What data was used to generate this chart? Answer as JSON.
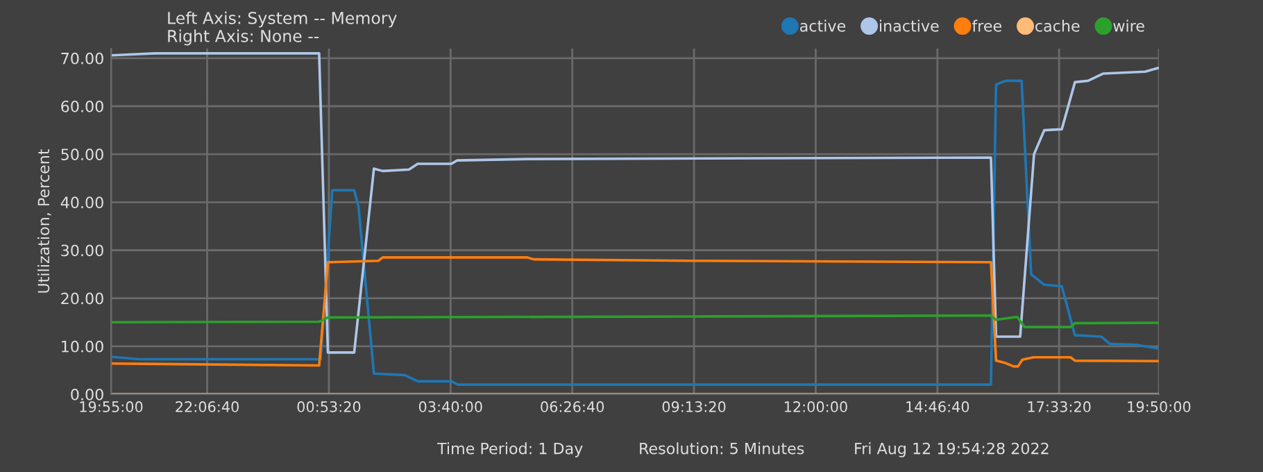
{
  "chart_data": {
    "type": "line",
    "title": "Left Axis: System -- Memory",
    "subtitle": "Right Axis: None --",
    "ylabel": "Utilization, Percent",
    "annotations": [
      "Time Period: 1 Day",
      "Resolution: 5 Minutes",
      "Fri Aug 12 19:54:28 2022"
    ],
    "xlim": [
      "2022-08-11T19:55",
      "2022-08-12T19:50"
    ],
    "xticks": [
      {
        "value": "2022-08-11T19:55",
        "label": "19:55:00"
      },
      {
        "value": "2022-08-11T22:06:40",
        "label": "22:06:40"
      },
      {
        "value": "2022-08-12T00:53:20",
        "label": "00:53:20"
      },
      {
        "value": "2022-08-12T03:40",
        "label": "03:40:00"
      },
      {
        "value": "2022-08-12T06:26:40",
        "label": "06:26:40"
      },
      {
        "value": "2022-08-12T09:13:20",
        "label": "09:13:20"
      },
      {
        "value": "2022-08-12T12:00",
        "label": "12:00:00"
      },
      {
        "value": "2022-08-12T14:46:40",
        "label": "14:46:40"
      },
      {
        "value": "2022-08-12T17:33:20",
        "label": "17:33:20"
      },
      {
        "value": "2022-08-12T19:50",
        "label": "19:50:00"
      }
    ],
    "ylim": [
      0,
      72
    ],
    "yticks": [
      {
        "value": 0,
        "label": "0.00"
      },
      {
        "value": 10,
        "label": "10.00"
      },
      {
        "value": 20,
        "label": "20.00"
      },
      {
        "value": 30,
        "label": "30.00"
      },
      {
        "value": 40,
        "label": "40.00"
      },
      {
        "value": 50,
        "label": "50.00"
      },
      {
        "value": 60,
        "label": "60.00"
      },
      {
        "value": 70,
        "label": "70.00"
      }
    ],
    "grid": true,
    "legend": "top right",
    "series": [
      {
        "name": "active",
        "color": "#1f77b4",
        "x": [
          "2022-08-11T19:55",
          "2022-08-11T20:33",
          "2022-08-12T00:42",
          "2022-08-12T00:58",
          "2022-08-12T01:28",
          "2022-08-12T01:34",
          "2022-08-12T01:55",
          "2022-08-12T02:37",
          "2022-08-12T02:55",
          "2022-08-12T03:41",
          "2022-08-12T03:50",
          "2022-08-12T16:00",
          "2022-08-12T16:07",
          "2022-08-12T16:20",
          "2022-08-12T16:42",
          "2022-08-12T16:55",
          "2022-08-12T17:13",
          "2022-08-12T17:37",
          "2022-08-12T17:55",
          "2022-08-12T18:31",
          "2022-08-12T18:43",
          "2022-08-12T19:19",
          "2022-08-12T19:50"
        ],
        "values": [
          7.8,
          7.3,
          7.3,
          42.5,
          42.5,
          39,
          4.3,
          4,
          2.7,
          2.7,
          2,
          2,
          64.5,
          65.3,
          65.3,
          25,
          22.8,
          22.5,
          12.3,
          12,
          10.5,
          10.3,
          9.5
        ]
      },
      {
        "name": "inactive",
        "color": "#aec7e8",
        "x": [
          "2022-08-11T19:55",
          "2022-08-11T20:55",
          "2022-08-12T00:40",
          "2022-08-12T00:52",
          "2022-08-12T01:28",
          "2022-08-12T01:55",
          "2022-08-12T02:07",
          "2022-08-12T02:43",
          "2022-08-12T02:55",
          "2022-08-12T03:41",
          "2022-08-12T03:49",
          "2022-08-12T05:25",
          "2022-08-12T16:00",
          "2022-08-12T16:07",
          "2022-08-12T16:40",
          "2022-08-12T16:59",
          "2022-08-12T17:13",
          "2022-08-12T17:37",
          "2022-08-12T17:55",
          "2022-08-12T18:13",
          "2022-08-12T18:34",
          "2022-08-12T19:31",
          "2022-08-12T19:50"
        ],
        "values": [
          70.6,
          71,
          71,
          8.7,
          8.7,
          47,
          46.5,
          46.8,
          48,
          48,
          48.7,
          49,
          49.3,
          12,
          12,
          50,
          55,
          55.2,
          65,
          65.3,
          66.8,
          67.2,
          68
        ]
      },
      {
        "name": "free",
        "color": "#ff7f0e",
        "x": [
          "2022-08-11T19:55",
          "2022-08-12T00:40",
          "2022-08-12T00:52",
          "2022-08-12T02:01",
          "2022-08-12T02:07",
          "2022-08-12T05:25",
          "2022-08-12T05:34",
          "2022-08-12T09:13",
          "2022-08-12T16:00",
          "2022-08-12T16:07",
          "2022-08-12T16:20",
          "2022-08-12T16:31",
          "2022-08-12T16:37",
          "2022-08-12T16:43",
          "2022-08-12T16:58",
          "2022-08-12T17:49",
          "2022-08-12T17:55",
          "2022-08-12T19:50"
        ],
        "values": [
          6.4,
          6.0,
          27.5,
          27.8,
          28.5,
          28.5,
          28.1,
          27.8,
          27.5,
          7,
          6.5,
          5.8,
          5.8,
          7.2,
          7.7,
          7.7,
          7,
          6.9
        ]
      },
      {
        "name": "cache",
        "color": "#ffbb78",
        "x": [
          "2022-08-11T19:55",
          "2022-08-12T19:50"
        ],
        "values": [
          0,
          0
        ]
      },
      {
        "name": "wire",
        "color": "#2ca02c",
        "x": [
          "2022-08-11T19:55",
          "2022-08-12T00:40",
          "2022-08-12T00:52",
          "2022-08-12T09:13",
          "2022-08-12T16:00",
          "2022-08-12T16:07",
          "2022-08-12T16:20",
          "2022-08-12T16:36",
          "2022-08-12T16:46",
          "2022-08-12T17:49",
          "2022-08-12T17:55",
          "2022-08-12T19:50"
        ],
        "values": [
          15,
          15.1,
          16,
          16.2,
          16.4,
          15.5,
          15.8,
          16.1,
          14,
          14,
          14.8,
          14.9
        ]
      }
    ]
  }
}
